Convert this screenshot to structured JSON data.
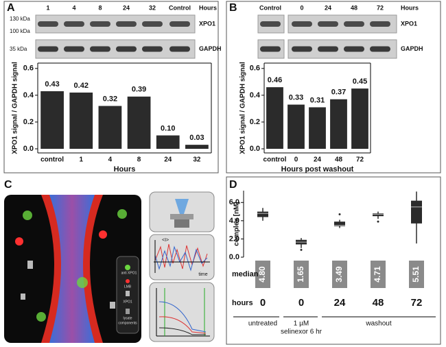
{
  "panels": [
    "A",
    "B",
    "C",
    "D"
  ],
  "chart_data": [
    {
      "type": "bar",
      "lanes": [
        "1",
        "4",
        "8",
        "24",
        "32",
        "Control"
      ],
      "lanes_title": "Hours",
      "blots": [
        "XPO1",
        "GAPDH"
      ],
      "markers": [
        "130 kDa",
        "100 kDa",
        "35 kDa"
      ],
      "categories": [
        "control",
        "1",
        "4",
        "8",
        "24",
        "32"
      ],
      "values": [
        0.43,
        0.42,
        0.32,
        0.39,
        0.1,
        0.03
      ],
      "value_labels": [
        "0.43",
        "0.42",
        "0.32",
        "0.39",
        "0.10",
        "0.03"
      ],
      "color": "#2b2b2b",
      "xlabel": "Hours",
      "ylabel": "XPO1 signal / GAPDH signal",
      "ylim": [
        0,
        0.64
      ],
      "yticks": [
        {
          "value": 0,
          "label": "0.0"
        },
        0.2,
        0.4,
        0.6
      ]
    },
    {
      "type": "bar",
      "lanes": [
        "Control",
        "0",
        "24",
        "48",
        "72"
      ],
      "lanes_title": "Hours",
      "blots": [
        "XPO1",
        "GAPDH"
      ],
      "categories": [
        "control",
        "0",
        "24",
        "48",
        "72"
      ],
      "values": [
        0.46,
        0.33,
        0.31,
        0.37,
        0.45
      ],
      "value_labels": [
        "0.46",
        "0.33",
        "0.31",
        "0.37",
        "0.45"
      ],
      "color": "#2b2b2b",
      "xlabel": "Hours post washout",
      "ylabel": "XPO1 signal / GAPDH signal",
      "ylim": [
        0,
        0.64
      ],
      "yticks": [
        {
          "value": 0,
          "label": "0.0"
        },
        0.2,
        0.4,
        0.6
      ]
    },
    {
      "type": "box",
      "ylabel": "complex [nM]",
      "categories": [
        "0",
        "0",
        "24",
        "48",
        "72"
      ],
      "row_labels": [
        "median",
        "hours"
      ],
      "boxes": [
        {
          "min": 4.0,
          "q1": 4.4,
          "median": 4.8,
          "q3": 5.0,
          "max": 5.4,
          "outliers": []
        },
        {
          "min": 1.0,
          "q1": 1.4,
          "median": 1.65,
          "q3": 1.9,
          "max": 2.1,
          "outliers": [
            0.8
          ]
        },
        {
          "min": 3.2,
          "q1": 3.4,
          "median": 3.49,
          "q3": 3.9,
          "max": 4.1,
          "outliers": [
            4.7
          ]
        },
        {
          "min": 4.2,
          "q1": 4.5,
          "median": 4.71,
          "q3": 4.8,
          "max": 5.0,
          "outliers": [
            3.9
          ]
        },
        {
          "min": 1.5,
          "q1": 3.7,
          "median": 5.51,
          "q3": 6.2,
          "max": 7.2,
          "outliers": []
        }
      ],
      "median_labels": [
        "4.80",
        "1.65",
        "3.49",
        "4.71",
        "5.51"
      ],
      "groups": [
        "untreated",
        "1 µM",
        "selinexor 6 hr",
        "washout"
      ],
      "color": "#2b2b2b",
      "ylim": [
        0,
        7.3
      ],
      "yticks": [
        {
          "value": 0,
          "label": "0.0"
        },
        {
          "value": 2,
          "label": "2.0"
        },
        {
          "value": 4,
          "label": "4.0"
        },
        {
          "value": 6,
          "label": "6.0"
        }
      ]
    }
  ],
  "diagram": {
    "legend": [
      "anti XPO1",
      "LMB",
      "XPO1",
      "lysate",
      "components"
    ],
    "intensity": "<I>",
    "time": "time"
  }
}
